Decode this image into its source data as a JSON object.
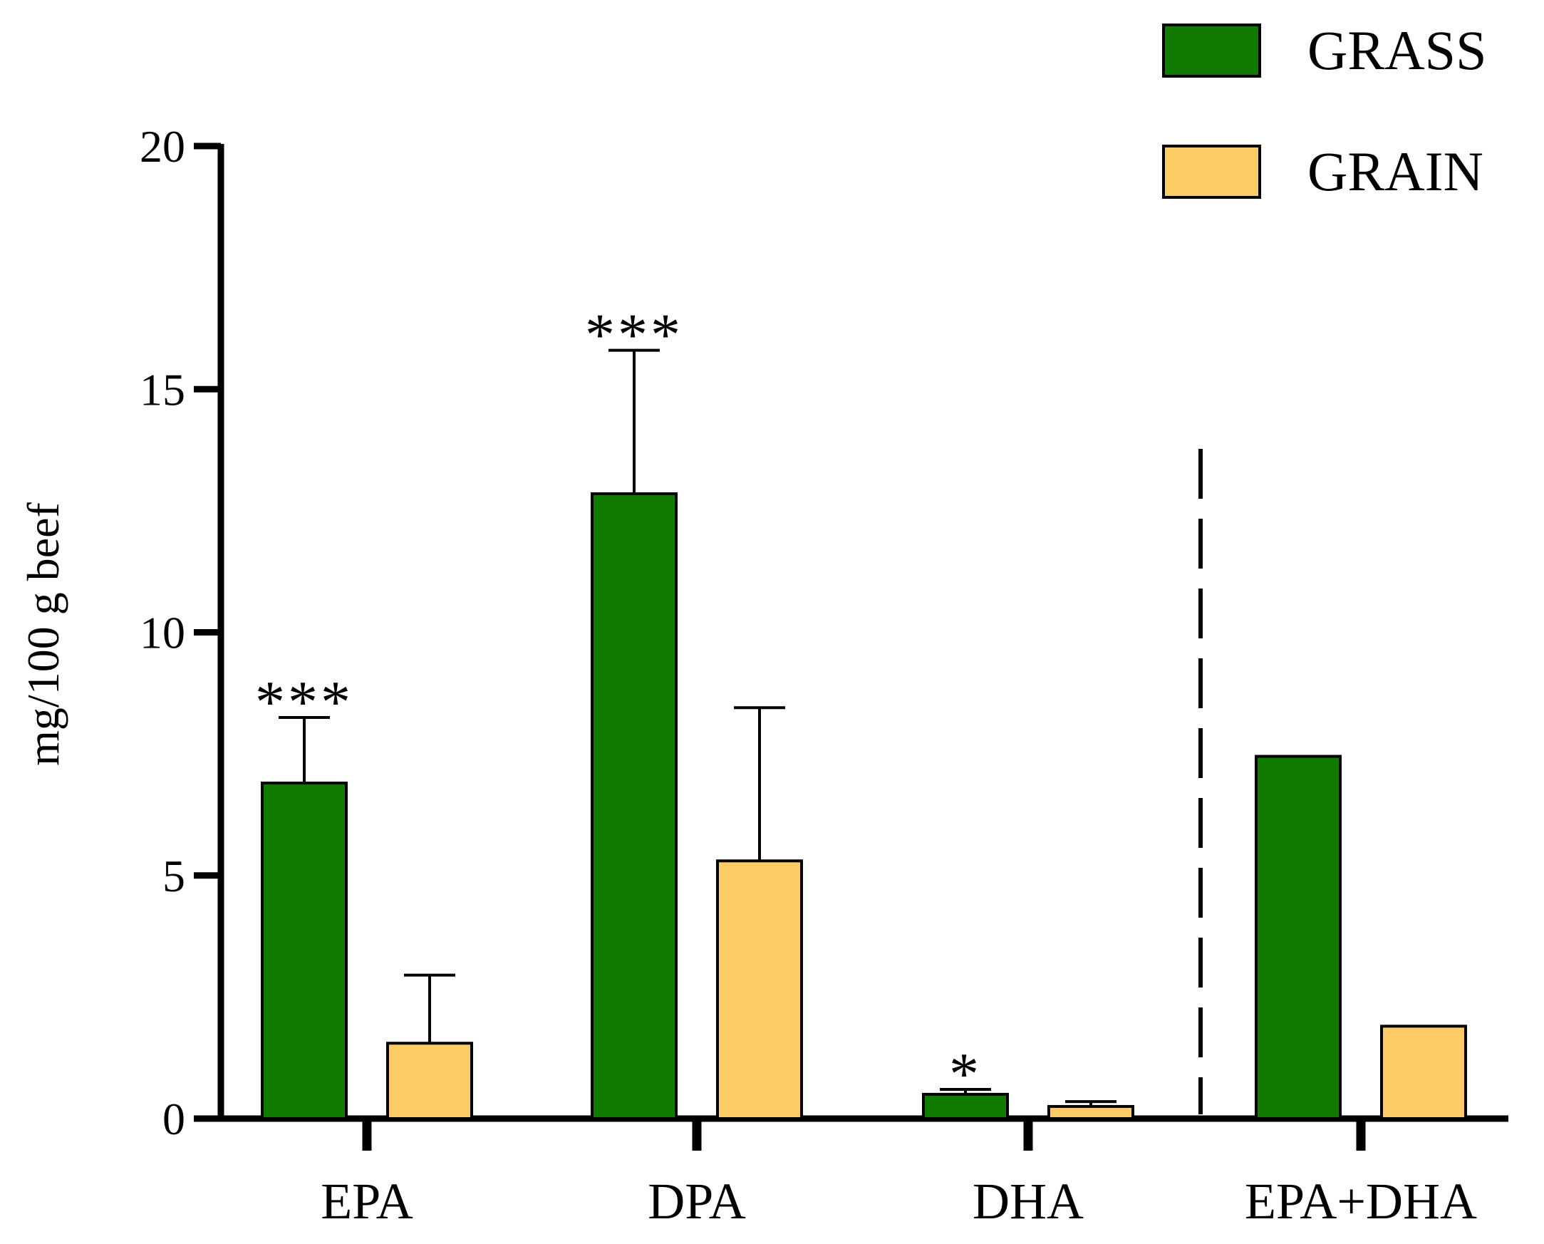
{
  "chart_data": {
    "type": "bar",
    "title": "",
    "xlabel": "",
    "ylabel": "mg/100 g beef",
    "ylim": [
      0,
      20
    ],
    "yticks": [
      0,
      5,
      10,
      15,
      20
    ],
    "grid": false,
    "legend_position": "top-right",
    "categories": [
      "EPA",
      "DPA",
      "DHA",
      "EPA+DHA"
    ],
    "series": [
      {
        "name": "GRASS",
        "color": "#137a00",
        "values": [
          6.9,
          12.85,
          0.5,
          7.45
        ],
        "errors": [
          1.35,
          2.95,
          0.1,
          null
        ]
      },
      {
        "name": "GRAIN",
        "color": "#fdcc66",
        "values": [
          1.55,
          5.3,
          0.25,
          1.9
        ],
        "errors": [
          1.4,
          3.15,
          0.1,
          null
        ]
      }
    ],
    "annotations": [
      {
        "category": "EPA",
        "series": "GRASS",
        "text": "***"
      },
      {
        "category": "DPA",
        "series": "GRASS",
        "text": "***"
      },
      {
        "category": "DHA",
        "series": "GRASS",
        "text": "*"
      }
    ],
    "separator_before_category": "EPA+DHA"
  }
}
